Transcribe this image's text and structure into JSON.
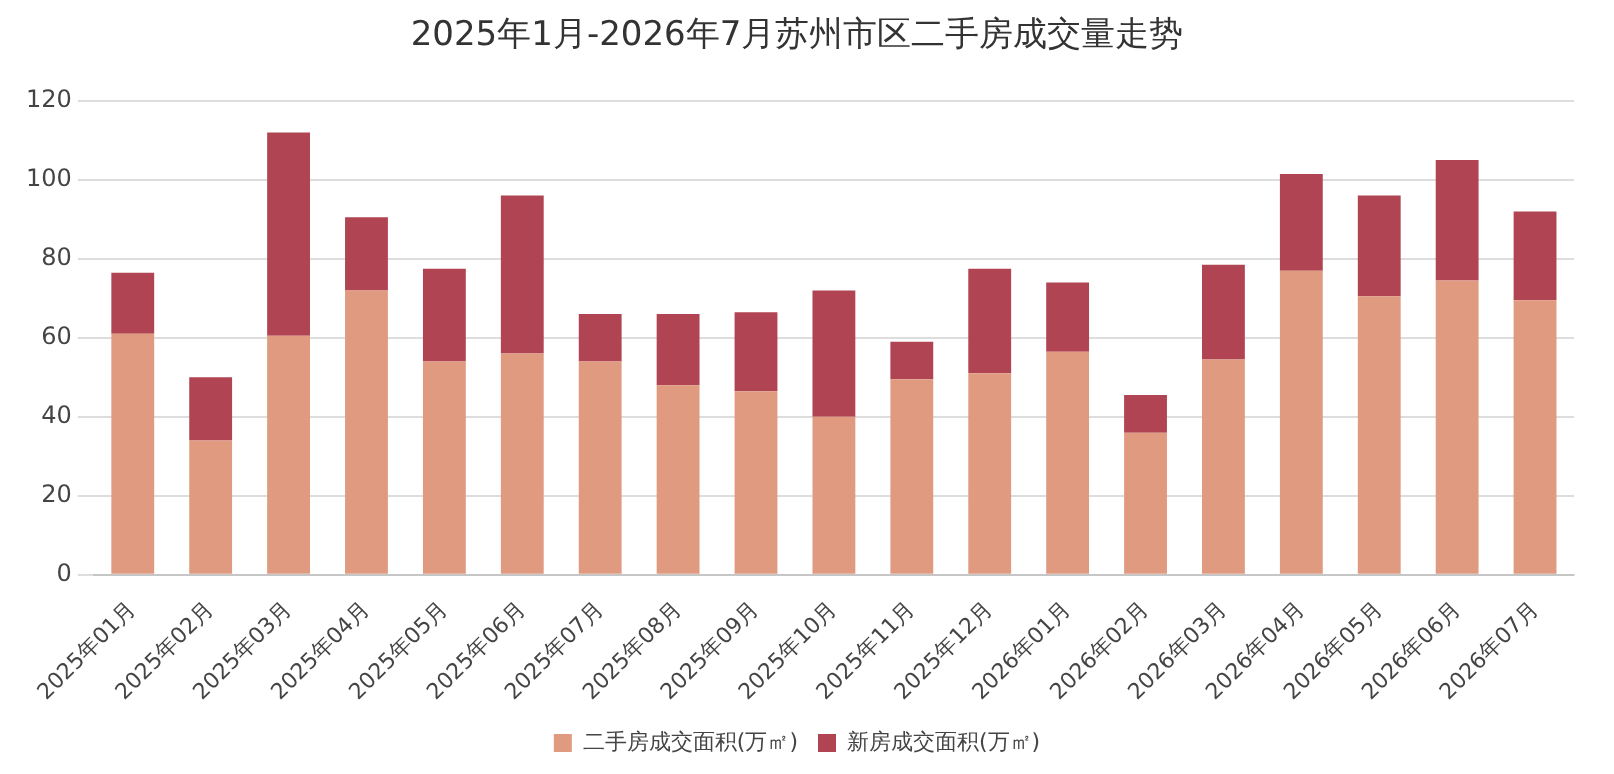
{
  "chart_data": {
    "type": "bar",
    "title": "2025年1月-2026年7月苏州市区二手房成交量走势",
    "stacked": true,
    "categories": [
      "2025年01月",
      "2025年02月",
      "2025年03月",
      "2025年04月",
      "2025年05月",
      "2025年06月",
      "2025年07月",
      "2025年08月",
      "2025年09月",
      "2025年10月",
      "2025年11月",
      "2025年12月",
      "2026年01月",
      "2026年02月",
      "2026年03月",
      "2026年04月",
      "2026年05月",
      "2026年06月",
      "2026年07月"
    ],
    "series": [
      {
        "name": "二手房成交面积(万㎡)",
        "color": "#e09a80",
        "values": [
          61,
          34,
          60.5,
          72,
          54,
          56,
          54,
          48,
          46.5,
          40,
          49.5,
          51,
          56.5,
          36,
          54.5,
          77,
          70.5,
          74.5,
          69.5
        ]
      },
      {
        "name": "新房成交面积(万㎡)",
        "color": "#b04452",
        "values": [
          15.5,
          16,
          51.5,
          18.5,
          23.5,
          40,
          12,
          18,
          20,
          32,
          9.5,
          26.5,
          17.5,
          9.5,
          24,
          24.5,
          25.5,
          30.5,
          22.5
        ]
      }
    ],
    "ylim": [
      0,
      120
    ],
    "yticks": [
      0,
      20,
      40,
      60,
      80,
      100,
      120
    ],
    "grid": "y",
    "legend": "bottom"
  }
}
